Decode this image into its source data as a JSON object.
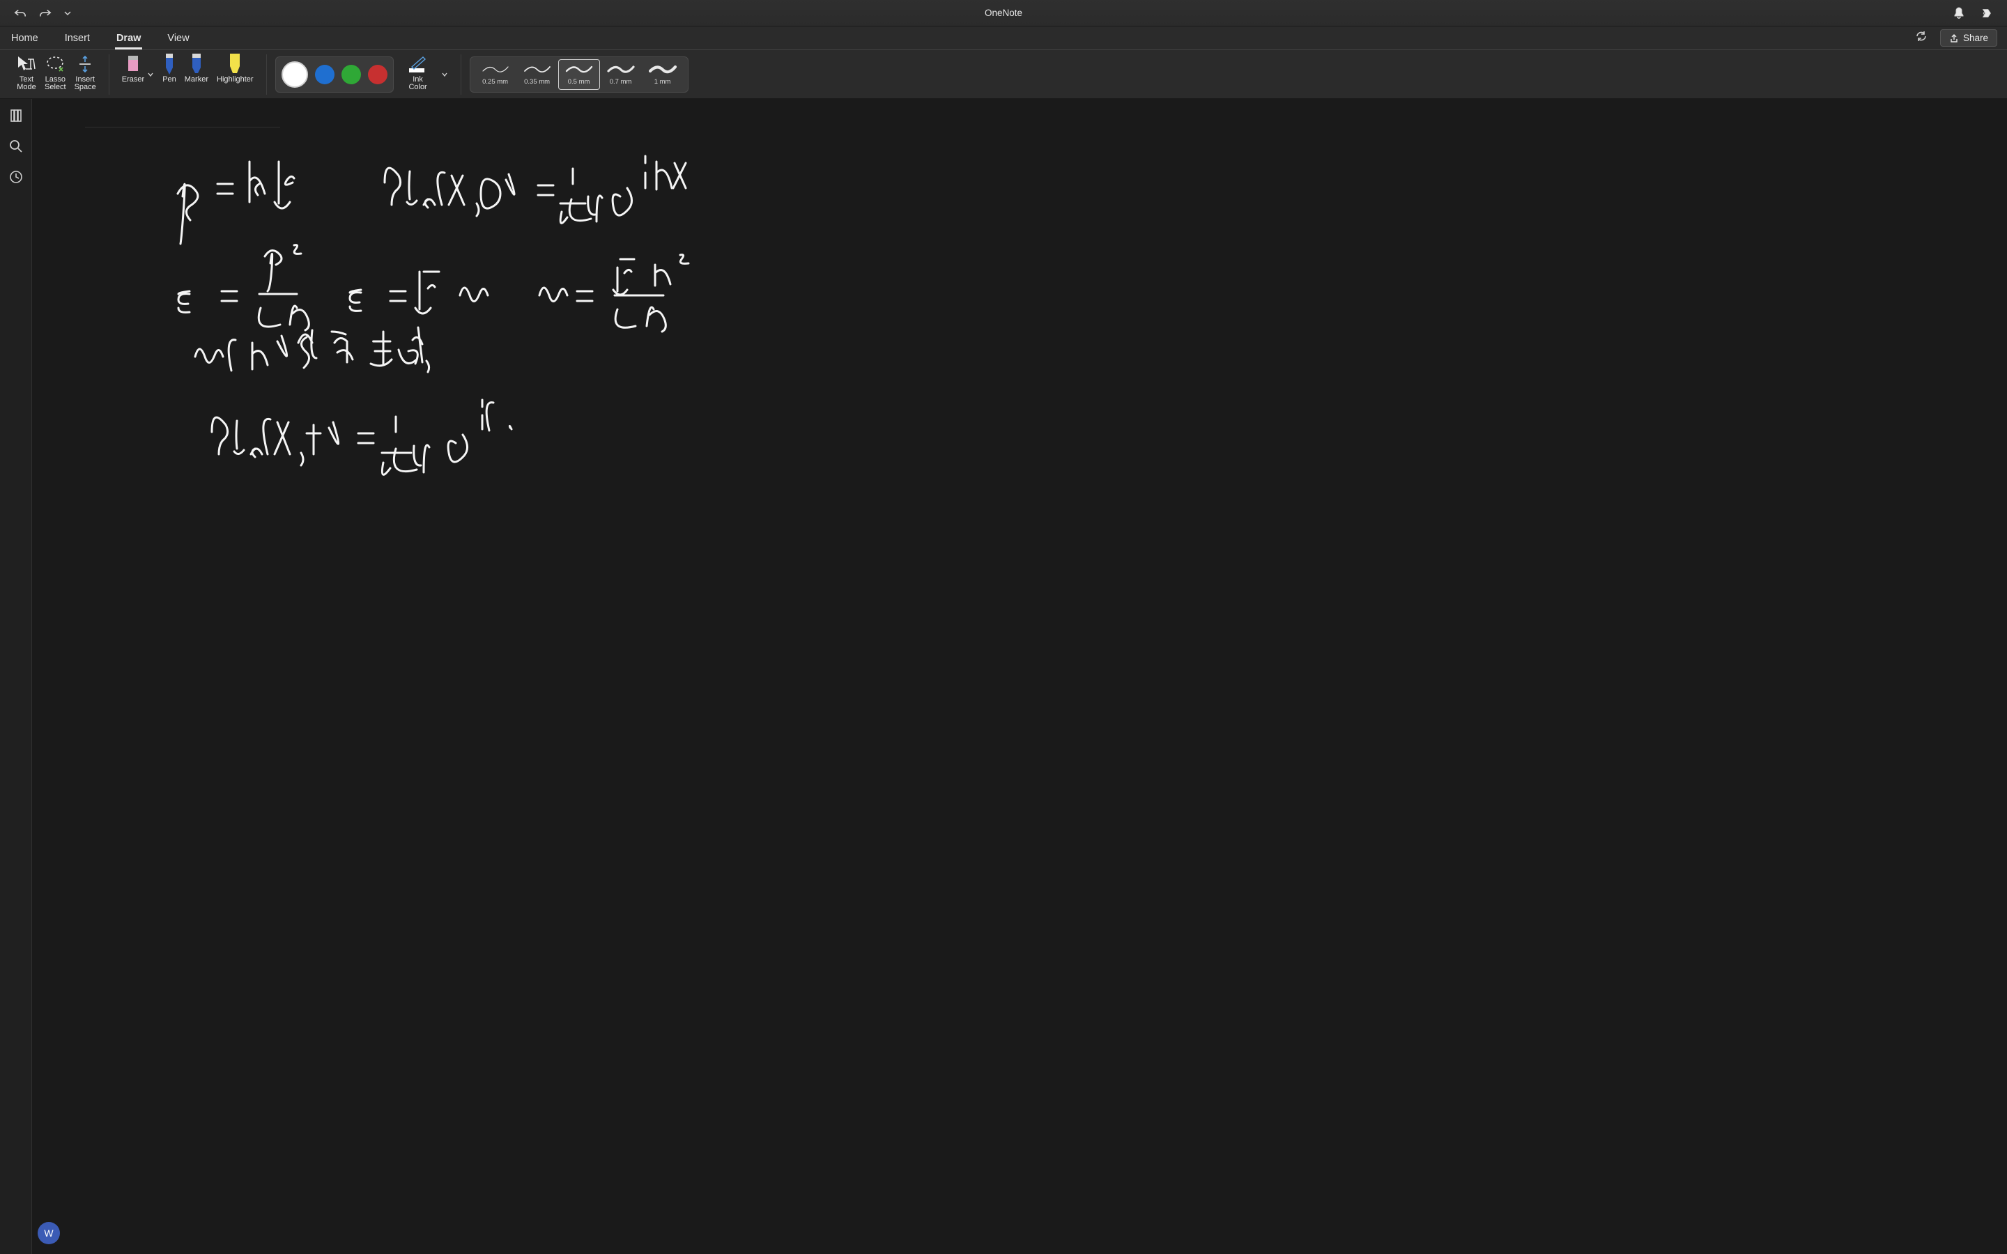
{
  "app": {
    "title": "OneNote"
  },
  "tabs": {
    "items": [
      "Home",
      "Insert",
      "Draw",
      "View"
    ],
    "active_index": 2,
    "share_label": "Share"
  },
  "ribbon": {
    "tools": {
      "text_mode": "Text\nMode",
      "lasso_select": "Lasso\nSelect",
      "insert_space": "Insert\nSpace",
      "eraser": "Eraser",
      "pen": "Pen",
      "marker": "Marker",
      "highlighter": "Highlighter",
      "ink_color": "Ink\nColor"
    },
    "colors": {
      "items": [
        "#ffffff",
        "#1f6fd0",
        "#2fa836",
        "#c73030"
      ],
      "selected_index": 0
    },
    "thickness": {
      "items": [
        {
          "label": "0.25 mm",
          "w": 1.2
        },
        {
          "label": "0.35 mm",
          "w": 1.8
        },
        {
          "label": "0.5 mm",
          "w": 2.4
        },
        {
          "label": "0.7 mm",
          "w": 3.2
        },
        {
          "label": "1 mm",
          "w": 4.2
        }
      ],
      "selected_index": 2
    }
  },
  "canvas": {
    "stroke_color": "#f5f5f5",
    "stroke_width": 3,
    "ink_paths": [
      "M225 250 q4 -40 0 -10 q-5 55 -8 70 m-5 -78 q10 -30 30 -10 q12 12 -5 25 q-20 12 -5 28 m48 -44 h18 m-18 14 h18",
      "M322 195 l0 48 m-6 -2 q8 20 20 0 m18 -26 q-3 -4 -8 2 q-6 10 5 4 m26 -40 l0 70 m-4 -40 q14 -10 20 20",
      "M525 220 q0 -35 20 -10 q6 14 -2 20 q-8 6 -8 20 m26 -46 q-2 22 0 36 m-4 4 q6 6 12 -2 m20 -30 q-18 -6 -6 36 m28 10 q20 30 -6 6 m28 -60 q14 -20 24 20 m-12 -18 q-14 6 -4 20 q10 12 24 -8",
      "M750 225 q-10 0 -8 14 q4 18 16 0 m36 -6 l0 -36 m-12 36 l24 0 m14 0 q10 -24 -4 -2 q-4 6 8 0 m26 -12 q-12 24 8 20 m-6 -24 l-6 26 m36 -18 q-10 -2 -8 12 q2 16 14 2 m-6 -30 l0 34 m26 -8 q-18 16 10 4 m-10 -22 q14 24 20 22",
      "M260 280 q-10 0 -8 14 q4 18 16 0 m36 -6 l0 -36 m-12 36 l24 0 m14 0 q10 -24 -4 -2 q-4 6 8 0"
    ]
  },
  "avatar": {
    "initial": "W"
  }
}
